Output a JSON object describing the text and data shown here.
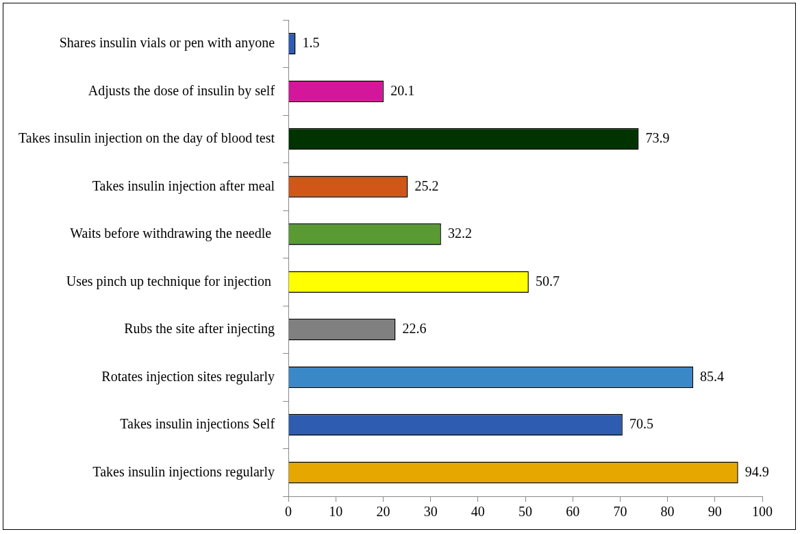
{
  "chart_data": {
    "type": "bar",
    "orientation": "horizontal",
    "categories": [
      "Shares insulin vials or pen with anyone",
      "Adjusts the dose of insulin by self",
      "Takes insulin injection on the day of blood test",
      "Takes insulin injection after meal",
      "Waits before withdrawing the needle ",
      "Uses pinch up technique for injection ",
      "Rubs the site after injecting",
      "Rotates injection sites regularly",
      "Takes insulin injections Self",
      "Takes insulin injections regularly"
    ],
    "values": [
      1.5,
      20.1,
      73.9,
      25.2,
      32.2,
      50.7,
      22.6,
      85.4,
      70.5,
      94.9
    ],
    "colors": [
      "#2e5db5",
      "#d4179a",
      "#003300",
      "#d0561a",
      "#5a9a32",
      "#ffff00",
      "#808080",
      "#3a88c8",
      "#2e5cb0",
      "#e6a800"
    ],
    "xlim": [
      0,
      100
    ],
    "xticks": [
      0,
      10,
      20,
      30,
      40,
      50,
      60,
      70,
      80,
      90,
      100
    ],
    "grid": false,
    "legend": false,
    "data_labels": true
  }
}
